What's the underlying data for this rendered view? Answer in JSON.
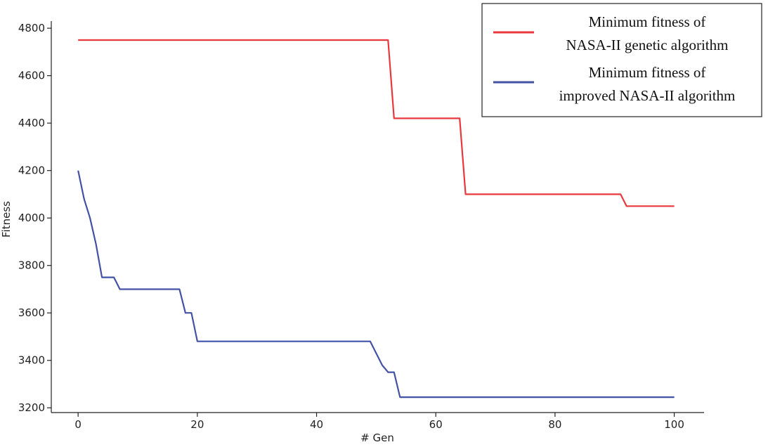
{
  "chart_data": {
    "type": "line",
    "title": "",
    "xlabel": "# Gen",
    "ylabel": "Fitness",
    "xlim": [
      -4.5,
      105
    ],
    "ylim": [
      3180,
      4830
    ],
    "xticks": [
      0,
      20,
      40,
      60,
      80,
      100
    ],
    "yticks": [
      3200,
      3400,
      3600,
      3800,
      4000,
      4200,
      4400,
      4600,
      4800
    ],
    "grid": false,
    "legend_position": "top-right",
    "series": [
      {
        "name": "Minimum fitness of NASA-II genetic algorithm",
        "legend_lines": [
          "Minimum fitness of",
          "NASA-II genetic algorithm"
        ],
        "color": "#e8383d",
        "x": [
          0,
          52,
          53,
          64,
          65,
          91,
          92,
          100
        ],
        "y": [
          4750,
          4750,
          4420,
          4420,
          4100,
          4100,
          4050,
          4050
        ]
      },
      {
        "name": "Minimum fitness of improved NASA-II algorithm",
        "legend_lines": [
          "Minimum fitness of",
          "improved NASA-II algorithm"
        ],
        "color": "#4452a6",
        "x": [
          0,
          1,
          2,
          3,
          4,
          5,
          6,
          7,
          8,
          17,
          18,
          19,
          20,
          49,
          50,
          51,
          52,
          53,
          54,
          100
        ],
        "y": [
          4200,
          4080,
          4000,
          3890,
          3750,
          3750,
          3750,
          3700,
          3700,
          3700,
          3600,
          3600,
          3480,
          3480,
          3430,
          3380,
          3350,
          3350,
          3245,
          3245
        ]
      }
    ]
  }
}
